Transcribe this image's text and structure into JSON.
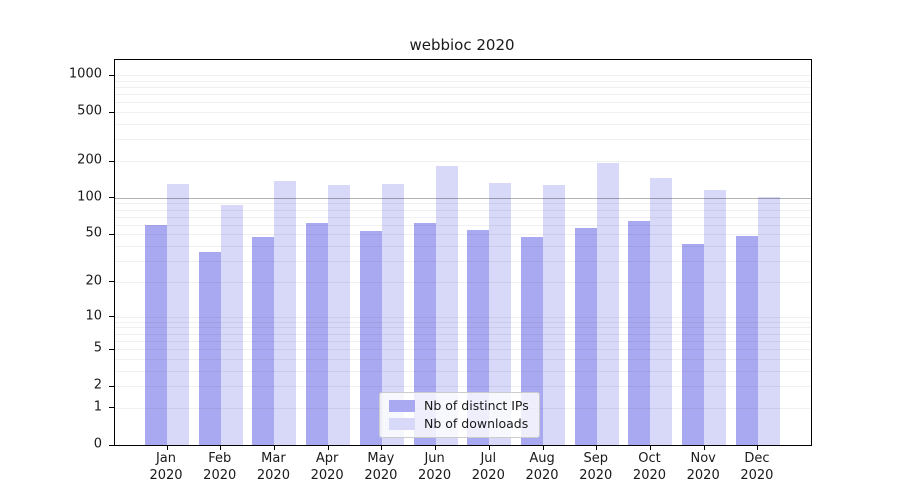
{
  "title": "webbioc 2020",
  "chart_data": {
    "type": "bar",
    "title": "webbioc 2020",
    "categories": [
      "Jan",
      "Feb",
      "Mar",
      "Apr",
      "May",
      "Jun",
      "Jul",
      "Aug",
      "Sep",
      "Oct",
      "Nov",
      "Dec"
    ],
    "year": "2020",
    "series": [
      {
        "name": "Nb of distinct IPs",
        "color": "#a9a9f1",
        "values": [
          60,
          36,
          48,
          62,
          53,
          62,
          54,
          48,
          57,
          64,
          42,
          49
        ]
      },
      {
        "name": "Nb of downloads",
        "color": "#d8d8f9",
        "values": [
          130,
          88,
          138,
          128,
          130,
          183,
          133,
          128,
          193,
          145,
          115,
          101
        ]
      }
    ],
    "y_scale": "log1p",
    "y_ticks": [
      0,
      1,
      2,
      5,
      10,
      20,
      50,
      100,
      200,
      500,
      1000
    ],
    "ylim": [
      0,
      1320
    ],
    "xlabel": "",
    "ylabel": "",
    "grid": {
      "minor_horizontal": true,
      "emphasis_line_at": 100
    },
    "legend_position": "inside-bottom-center"
  },
  "colors": {
    "background": "#ffffff",
    "axis": "#000000",
    "gridline_minor": "rgba(0,0,0,0.06)",
    "gridline_emphasis": "rgba(0,0,0,0.30)",
    "text": "#1a1a1a"
  }
}
